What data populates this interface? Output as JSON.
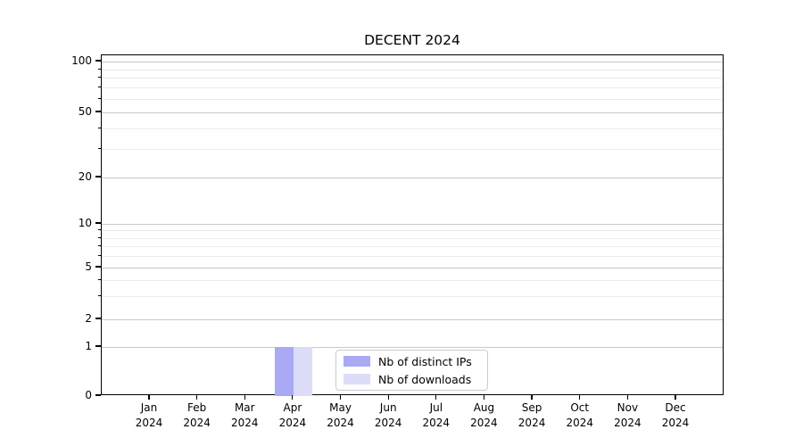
{
  "chart_data": {
    "type": "bar",
    "title": "DECENT 2024",
    "categories": [
      {
        "month": "Jan",
        "year": "2024"
      },
      {
        "month": "Feb",
        "year": "2024"
      },
      {
        "month": "Mar",
        "year": "2024"
      },
      {
        "month": "Apr",
        "year": "2024"
      },
      {
        "month": "May",
        "year": "2024"
      },
      {
        "month": "Jun",
        "year": "2024"
      },
      {
        "month": "Jul",
        "year": "2024"
      },
      {
        "month": "Aug",
        "year": "2024"
      },
      {
        "month": "Sep",
        "year": "2024"
      },
      {
        "month": "Oct",
        "year": "2024"
      },
      {
        "month": "Nov",
        "year": "2024"
      },
      {
        "month": "Dec",
        "year": "2024"
      }
    ],
    "series": [
      {
        "name": "Nb of distinct IPs",
        "color": "#a9a9f4",
        "values": [
          0,
          0,
          0,
          1,
          0,
          0,
          0,
          0,
          0,
          0,
          0,
          0
        ]
      },
      {
        "name": "Nb of downloads",
        "color": "#dcdcf9",
        "values": [
          0,
          0,
          0,
          1,
          0,
          0,
          0,
          0,
          0,
          0,
          0,
          0
        ]
      }
    ],
    "y_axis": {
      "scale": "symlog",
      "tick_values": [
        0,
        1,
        2,
        5,
        10,
        20,
        50,
        100
      ],
      "minor_tick_values": [
        3,
        4,
        6,
        7,
        8,
        9,
        30,
        40,
        60,
        70,
        80,
        90
      ]
    },
    "x_axis": {
      "label_format": "month-over-year"
    },
    "legend": {
      "position": "bottom-center",
      "entries": [
        "Nb of distinct IPs",
        "Nb of downloads"
      ]
    },
    "grid": "horizontal",
    "colors": {
      "grid_major": "#c9c9c9",
      "grid_minor": "#ebebeb",
      "spine": "#000000",
      "background": "#ffffff"
    }
  }
}
